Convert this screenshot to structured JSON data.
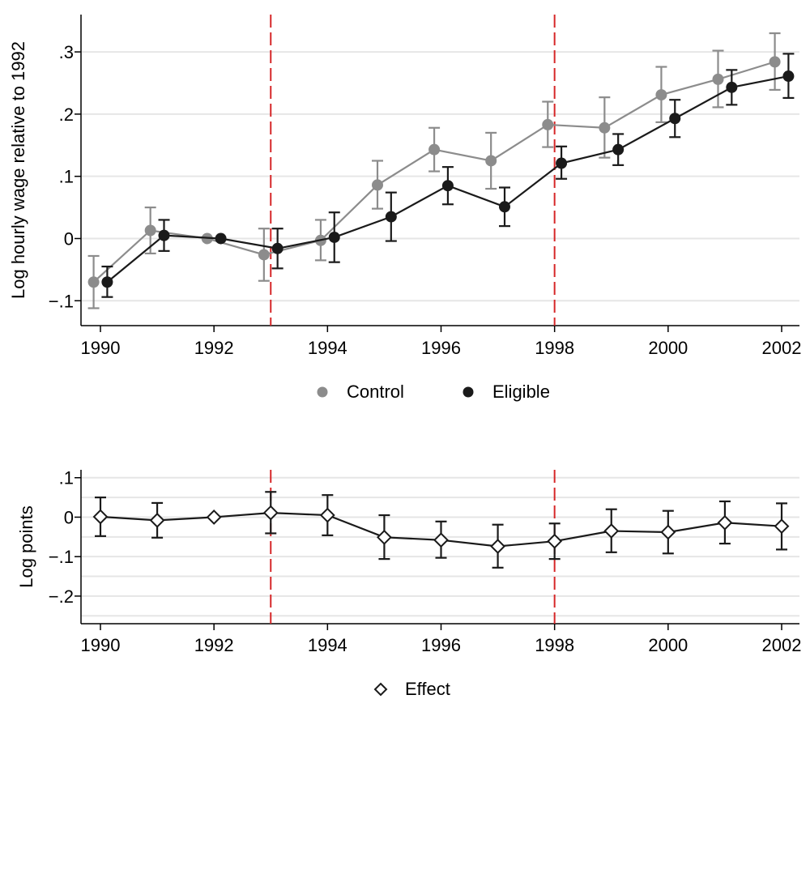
{
  "colors": {
    "control": "#8c8c8c",
    "eligible": "#1a1a1a",
    "effect": "#1a1a1a",
    "reference_line": "#d62728",
    "grid": "#e6e6e6"
  },
  "chart_data": [
    {
      "type": "line",
      "title": "",
      "xlabel": "",
      "ylabel": "Log hourly wage relative to 1992",
      "xlim": [
        1990,
        2002
      ],
      "ylim": [
        -0.14,
        0.36
      ],
      "xticks": [
        1990,
        1992,
        1994,
        1996,
        1998,
        2000,
        2002
      ],
      "xtick_labels": [
        "1990",
        "1992",
        "1994",
        "1996",
        "1998",
        "2000",
        "2002"
      ],
      "yticks": [
        -0.1,
        0,
        0.1,
        0.2,
        0.3
      ],
      "ytick_labels": [
        "-.1",
        "0",
        ".1",
        ".2",
        ".3"
      ],
      "grid": true,
      "reference_lines_x": [
        1993,
        1998
      ],
      "legend_position": "bottom",
      "series": [
        {
          "name": "Control",
          "marker": "circle",
          "x": [
            1990,
            1991,
            1992,
            1993,
            1994,
            1995,
            1996,
            1997,
            1998,
            1999,
            2000,
            2001,
            2002
          ],
          "y": [
            -0.07,
            0.013,
            0.0,
            -0.026,
            -0.003,
            0.086,
            0.143,
            0.125,
            0.183,
            0.178,
            0.231,
            0.256,
            0.284
          ],
          "lower": [
            -0.112,
            -0.024,
            0.0,
            -0.068,
            -0.035,
            0.048,
            0.108,
            0.08,
            0.147,
            0.13,
            0.187,
            0.211,
            0.239
          ],
          "upper": [
            -0.028,
            0.05,
            0.0,
            0.016,
            0.03,
            0.125,
            0.178,
            0.17,
            0.22,
            0.227,
            0.276,
            0.302,
            0.33
          ]
        },
        {
          "name": "Eligible",
          "marker": "circle",
          "x": [
            1990,
            1991,
            1992,
            1993,
            1994,
            1995,
            1996,
            1997,
            1998,
            1999,
            2000,
            2001,
            2002
          ],
          "y": [
            -0.07,
            0.005,
            0.0,
            -0.016,
            0.002,
            0.035,
            0.085,
            0.051,
            0.121,
            0.143,
            0.193,
            0.243,
            0.261
          ],
          "lower": [
            -0.094,
            -0.02,
            0.0,
            -0.048,
            -0.038,
            -0.004,
            0.055,
            0.02,
            0.096,
            0.118,
            0.163,
            0.215,
            0.226
          ],
          "upper": [
            -0.045,
            0.03,
            0.0,
            0.016,
            0.042,
            0.074,
            0.115,
            0.082,
            0.148,
            0.168,
            0.223,
            0.271,
            0.297
          ]
        }
      ]
    },
    {
      "type": "line",
      "title": "",
      "xlabel": "",
      "ylabel": "Log points",
      "xlim": [
        1990,
        2002
      ],
      "ylim": [
        -0.27,
        0.12
      ],
      "xticks": [
        1990,
        1992,
        1994,
        1996,
        1998,
        2000,
        2002
      ],
      "xtick_labels": [
        "1990",
        "1992",
        "1994",
        "1996",
        "1998",
        "2000",
        "2002"
      ],
      "yticks": [
        -0.2,
        -0.1,
        0,
        0.1
      ],
      "ytick_labels": [
        "-.2",
        "-.1",
        "0",
        ".1"
      ],
      "gridlines_y": [
        -0.25,
        -0.2,
        -0.15,
        -0.1,
        -0.05,
        0,
        0.05,
        0.1
      ],
      "grid": true,
      "reference_lines_x": [
        1993,
        1998
      ],
      "legend_position": "bottom",
      "series": [
        {
          "name": "Effect",
          "marker": "diamond",
          "x": [
            1990,
            1991,
            1992,
            1993,
            1994,
            1995,
            1996,
            1997,
            1998,
            1999,
            2000,
            2001,
            2002
          ],
          "y": [
            0.001,
            -0.008,
            0.0,
            0.011,
            0.005,
            -0.051,
            -0.058,
            -0.074,
            -0.061,
            -0.035,
            -0.038,
            -0.014,
            -0.023
          ],
          "lower": [
            -0.048,
            -0.052,
            0.0,
            -0.041,
            -0.046,
            -0.106,
            -0.103,
            -0.128,
            -0.106,
            -0.089,
            -0.092,
            -0.067,
            -0.082
          ],
          "upper": [
            0.05,
            0.036,
            0.0,
            0.064,
            0.056,
            0.005,
            -0.011,
            -0.019,
            -0.016,
            0.02,
            0.016,
            0.04,
            0.035
          ]
        }
      ]
    }
  ]
}
